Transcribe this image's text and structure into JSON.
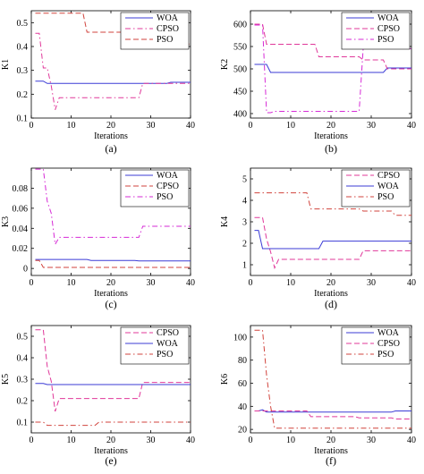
{
  "colors": {
    "WOA": "#3b3bd6",
    "CPSO": "#e0389a",
    "PSO": "#d1433c",
    "PSO_magenta": "#d62ad6"
  },
  "chart_data": [
    {
      "type": "line",
      "panel_label": "(a)",
      "xlabel": "Iterations",
      "ylabel": "K1",
      "xlim": [
        0,
        40
      ],
      "ylim": [
        0.1,
        0.55
      ],
      "xticks": [
        "0",
        "10",
        "20",
        "30",
        "40"
      ],
      "yticks": [
        "0.1",
        "0.2",
        "0.3",
        "0.4",
        "0.5"
      ],
      "yticks_values": [
        0.1,
        0.2,
        0.3,
        0.4,
        0.5
      ],
      "legend_position": "top-right",
      "series": [
        {
          "name": "WOA",
          "color_key": "WOA",
          "dash": "solid",
          "points": [
            [
              1,
              0.255
            ],
            [
              3,
              0.255
            ],
            [
              4,
              0.245
            ],
            [
              34,
              0.245
            ],
            [
              35,
              0.25
            ],
            [
              40,
              0.25
            ]
          ]
        },
        {
          "name": "CPSO",
          "color_key": "CPSO",
          "dash": "dashdot",
          "points": [
            [
              1,
              0.455
            ],
            [
              2,
              0.455
            ],
            [
              3,
              0.31
            ],
            [
              4,
              0.31
            ],
            [
              5,
              0.235
            ],
            [
              6,
              0.135
            ],
            [
              7,
              0.185
            ],
            [
              27,
              0.185
            ],
            [
              28,
              0.245
            ],
            [
              40,
              0.245
            ]
          ]
        },
        {
          "name": "PSO",
          "color_key": "PSO",
          "dash": "dash",
          "points": [
            [
              1,
              0.54
            ],
            [
              13,
              0.54
            ],
            [
              14,
              0.46
            ],
            [
              25,
              0.46
            ],
            [
              26,
              0.44
            ],
            [
              33,
              0.44
            ],
            [
              35,
              0.41
            ],
            [
              40,
              0.41
            ]
          ]
        }
      ]
    },
    {
      "type": "line",
      "panel_label": "(b)",
      "xlabel": "Iterations",
      "ylabel": "K2",
      "xlim": [
        0,
        40
      ],
      "ylim": [
        390,
        630
      ],
      "xticks": [
        "0",
        "10",
        "20",
        "30",
        "40"
      ],
      "yticks": [
        "400",
        "450",
        "500",
        "550",
        "600"
      ],
      "yticks_values": [
        400,
        450,
        500,
        550,
        600
      ],
      "legend_position": "top-right",
      "series": [
        {
          "name": "WOA",
          "color_key": "WOA",
          "dash": "solid",
          "points": [
            [
              1,
              510
            ],
            [
              4,
              510
            ],
            [
              5,
              492
            ],
            [
              33,
              492
            ],
            [
              34,
              502
            ],
            [
              40,
              502
            ]
          ]
        },
        {
          "name": "CPSO",
          "color_key": "CPSO",
          "dash": "dash",
          "points": [
            [
              1,
              600
            ],
            [
              3,
              600
            ],
            [
              4,
              555
            ],
            [
              16,
              555
            ],
            [
              17,
              527
            ],
            [
              27,
              527
            ],
            [
              28,
              520
            ],
            [
              33,
              520
            ],
            [
              34,
              500
            ],
            [
              40,
              500
            ]
          ]
        },
        {
          "name": "PSO",
          "color_key": "PSO_magenta",
          "dash": "dashdot",
          "points": [
            [
              1,
              598
            ],
            [
              3,
              598
            ],
            [
              4,
              402
            ],
            [
              5,
              402
            ],
            [
              6,
              405
            ],
            [
              27,
              405
            ],
            [
              28,
              545
            ],
            [
              40,
              545
            ]
          ]
        }
      ]
    },
    {
      "type": "line",
      "panel_label": "(c)",
      "xlabel": "Iterations",
      "ylabel": "K3",
      "xlim": [
        0,
        40
      ],
      "ylim": [
        -0.007,
        0.1
      ],
      "xticks": [
        "0",
        "10",
        "20",
        "30",
        "40"
      ],
      "yticks": [
        "0",
        "0.02",
        "0.04",
        "0.06",
        "0.08"
      ],
      "yticks_values": [
        0,
        0.02,
        0.04,
        0.06,
        0.08
      ],
      "legend_position": "top-right",
      "series": [
        {
          "name": "WOA",
          "color_key": "WOA",
          "dash": "solid",
          "points": [
            [
              1,
              0.009
            ],
            [
              14,
              0.009
            ],
            [
              15,
              0.008
            ],
            [
              26,
              0.008
            ],
            [
              27,
              0.0075
            ],
            [
              40,
              0.0075
            ]
          ]
        },
        {
          "name": "CPSO",
          "color_key": "PSO",
          "dash": "dash",
          "points": [
            [
              1,
              0.008
            ],
            [
              2,
              0.008
            ],
            [
              3,
              0.001
            ],
            [
              40,
              0.001
            ]
          ]
        },
        {
          "name": "PSO",
          "color_key": "PSO_magenta",
          "dash": "dashdot",
          "points": [
            [
              1,
              0.099
            ],
            [
              3,
              0.099
            ],
            [
              4,
              0.067
            ],
            [
              5,
              0.055
            ],
            [
              6,
              0.024
            ],
            [
              7,
              0.031
            ],
            [
              27,
              0.031
            ],
            [
              28,
              0.042
            ],
            [
              40,
              0.042
            ]
          ]
        }
      ]
    },
    {
      "type": "line",
      "panel_label": "(d)",
      "xlabel": "Iterations",
      "ylabel": "K4",
      "xlim": [
        0,
        40
      ],
      "ylim": [
        0.5,
        5.5
      ],
      "xticks": [
        "0",
        "10",
        "20",
        "30",
        "40"
      ],
      "yticks": [
        "1",
        "2",
        "3",
        "4",
        "5"
      ],
      "yticks_values": [
        1,
        2,
        3,
        4,
        5
      ],
      "legend_position": "top-right",
      "series": [
        {
          "name": "CPSO",
          "color_key": "CPSO",
          "dash": "dash",
          "points": [
            [
              1,
              3.2
            ],
            [
              3,
              3.2
            ],
            [
              4,
              2.2
            ],
            [
              5,
              1.6
            ],
            [
              6,
              0.85
            ],
            [
              7,
              1.25
            ],
            [
              27,
              1.25
            ],
            [
              28,
              1.65
            ],
            [
              40,
              1.65
            ]
          ]
        },
        {
          "name": "WOA",
          "color_key": "WOA",
          "dash": "solid",
          "points": [
            [
              1,
              2.6
            ],
            [
              2,
              2.6
            ],
            [
              3,
              1.75
            ],
            [
              17,
              1.75
            ],
            [
              18,
              2.1
            ],
            [
              40,
              2.1
            ]
          ]
        },
        {
          "name": "PSO",
          "color_key": "PSO",
          "dash": "dashdot",
          "points": [
            [
              1,
              4.35
            ],
            [
              14,
              4.35
            ],
            [
              15,
              3.6
            ],
            [
              27,
              3.6
            ],
            [
              28,
              3.5
            ],
            [
              35,
              3.5
            ],
            [
              36,
              3.3
            ],
            [
              40,
              3.3
            ]
          ]
        }
      ]
    },
    {
      "type": "line",
      "panel_label": "(e)",
      "xlabel": "Iterations",
      "ylabel": "K5",
      "xlim": [
        0,
        40
      ],
      "ylim": [
        0.05,
        0.55
      ],
      "xticks": [
        "0",
        "10",
        "20",
        "30",
        "40"
      ],
      "yticks": [
        "0.1",
        "0.2",
        "0.3",
        "0.4",
        "0.5"
      ],
      "yticks_values": [
        0.1,
        0.2,
        0.3,
        0.4,
        0.5
      ],
      "legend_position": "top-right",
      "series": [
        {
          "name": "CPSO",
          "color_key": "CPSO",
          "dash": "dash",
          "points": [
            [
              1,
              0.53
            ],
            [
              3,
              0.53
            ],
            [
              4,
              0.36
            ],
            [
              5,
              0.29
            ],
            [
              6,
              0.15
            ],
            [
              7,
              0.21
            ],
            [
              27,
              0.21
            ],
            [
              28,
              0.285
            ],
            [
              40,
              0.285
            ]
          ]
        },
        {
          "name": "WOA",
          "color_key": "WOA",
          "dash": "solid",
          "points": [
            [
              1,
              0.28
            ],
            [
              3,
              0.28
            ],
            [
              4,
              0.275
            ],
            [
              40,
              0.275
            ]
          ]
        },
        {
          "name": "PSO",
          "color_key": "PSO",
          "dash": "dashdot",
          "points": [
            [
              1,
              0.1
            ],
            [
              3,
              0.1
            ],
            [
              4,
              0.085
            ],
            [
              16,
              0.085
            ],
            [
              17,
              0.1
            ],
            [
              40,
              0.1
            ]
          ]
        }
      ]
    },
    {
      "type": "line",
      "panel_label": "(f)",
      "xlabel": "Iterations",
      "ylabel": "K6",
      "xlim": [
        0,
        40
      ],
      "ylim": [
        17,
        110
      ],
      "xticks": [
        "0",
        "10",
        "20",
        "30",
        "40"
      ],
      "yticks": [
        "20",
        "40",
        "60",
        "80",
        "100"
      ],
      "yticks_values": [
        20,
        40,
        60,
        80,
        100
      ],
      "legend_position": "top-right",
      "series": [
        {
          "name": "WOA",
          "color_key": "WOA",
          "dash": "solid",
          "points": [
            [
              1,
              36
            ],
            [
              2,
              36
            ],
            [
              3,
              37
            ],
            [
              4,
              35
            ],
            [
              35,
              35
            ],
            [
              36,
              36
            ],
            [
              40,
              36
            ]
          ]
        },
        {
          "name": "CPSO",
          "color_key": "CPSO",
          "dash": "dash",
          "points": [
            [
              1,
              36
            ],
            [
              14,
              36
            ],
            [
              15,
              31
            ],
            [
              26,
              31
            ],
            [
              27,
              30
            ],
            [
              35,
              30
            ],
            [
              36,
              29
            ],
            [
              40,
              29
            ]
          ]
        },
        {
          "name": "PSO",
          "color_key": "PSO",
          "dash": "dashdot",
          "points": [
            [
              1,
              106
            ],
            [
              3,
              106
            ],
            [
              4,
              67
            ],
            [
              5,
              40
            ],
            [
              6,
              21
            ],
            [
              40,
              21
            ]
          ]
        }
      ]
    }
  ]
}
